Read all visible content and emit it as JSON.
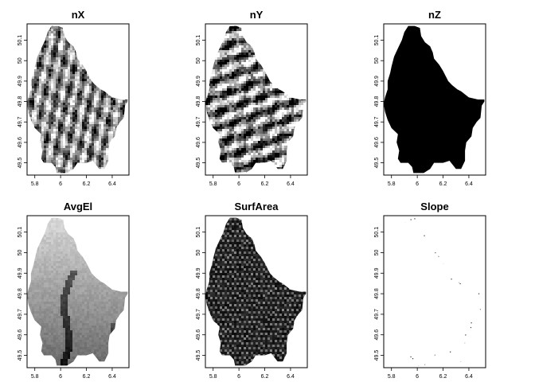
{
  "figure": {
    "background": "#ffffff"
  },
  "chart_data": [
    {
      "type": "heatmap",
      "title": "nX",
      "xlabel": "",
      "ylabel": "",
      "xlim": [
        5.74,
        6.53
      ],
      "ylim": [
        49.44,
        50.18
      ],
      "x_ticks": [
        5.8,
        6,
        6.2,
        6.4
      ],
      "x_tick_labels": [
        "5.8",
        "6",
        "6.2",
        "6.4"
      ],
      "y_ticks": [
        49.5,
        49.6,
        49.7,
        49.8,
        49.9,
        50,
        50.1
      ],
      "y_tick_labels": [
        "49.5",
        "49.6",
        "49.7",
        "49.8",
        "49.9",
        "50",
        "50.1"
      ],
      "palette": "grayscale",
      "pattern": "diagonal-relief"
    },
    {
      "type": "heatmap",
      "title": "nY",
      "xlabel": "",
      "ylabel": "",
      "xlim": [
        5.74,
        6.53
      ],
      "ylim": [
        49.44,
        50.18
      ],
      "x_ticks": [
        5.8,
        6,
        6.2,
        6.4
      ],
      "x_tick_labels": [
        "5.8",
        "6",
        "6.2",
        "6.4"
      ],
      "y_ticks": [
        49.5,
        49.6,
        49.7,
        49.8,
        49.9,
        50,
        50.1
      ],
      "y_tick_labels": [
        "49.5",
        "49.6",
        "49.7",
        "49.8",
        "49.9",
        "50",
        "50.1"
      ],
      "palette": "grayscale",
      "pattern": "horizontal-relief"
    },
    {
      "type": "heatmap",
      "title": "nZ",
      "xlabel": "",
      "ylabel": "",
      "xlim": [
        5.74,
        6.53
      ],
      "ylim": [
        49.44,
        50.18
      ],
      "x_ticks": [
        5.8,
        6,
        6.2,
        6.4
      ],
      "x_tick_labels": [
        "5.8",
        "6",
        "6.2",
        "6.4"
      ],
      "y_ticks": [
        49.5,
        49.6,
        49.7,
        49.8,
        49.9,
        50,
        50.1
      ],
      "y_tick_labels": [
        "49.5",
        "49.6",
        "49.7",
        "49.8",
        "49.9",
        "50",
        "50.1"
      ],
      "palette": "grayscale",
      "pattern": "solid-dark"
    },
    {
      "type": "heatmap",
      "title": "AvgEl",
      "xlabel": "",
      "ylabel": "",
      "xlim": [
        5.74,
        6.53
      ],
      "ylim": [
        49.44,
        50.18
      ],
      "x_ticks": [
        5.8,
        6,
        6.2,
        6.4
      ],
      "x_tick_labels": [
        "5.8",
        "6",
        "6.2",
        "6.4"
      ],
      "y_ticks": [
        49.5,
        49.6,
        49.7,
        49.8,
        49.9,
        50,
        50.1
      ],
      "y_tick_labels": [
        "49.5",
        "49.6",
        "49.7",
        "49.8",
        "49.9",
        "50",
        "50.1"
      ],
      "palette": "grayscale",
      "pattern": "elevation"
    },
    {
      "type": "heatmap",
      "title": "SurfArea",
      "xlabel": "",
      "ylabel": "",
      "xlim": [
        5.74,
        6.53
      ],
      "ylim": [
        49.44,
        50.18
      ],
      "x_ticks": [
        5.8,
        6,
        6.2,
        6.4
      ],
      "x_tick_labels": [
        "5.8",
        "6",
        "6.2",
        "6.4"
      ],
      "y_ticks": [
        49.5,
        49.6,
        49.7,
        49.8,
        49.9,
        50,
        50.1
      ],
      "y_tick_labels": [
        "49.5",
        "49.6",
        "49.7",
        "49.8",
        "49.9",
        "50",
        "50.1"
      ],
      "palette": "grayscale",
      "pattern": "dark-with-streaks"
    },
    {
      "type": "heatmap",
      "title": "Slope",
      "xlabel": "",
      "ylabel": "",
      "xlim": [
        5.74,
        6.53
      ],
      "ylim": [
        49.44,
        50.18
      ],
      "x_ticks": [
        5.8,
        6,
        6.2,
        6.4
      ],
      "x_tick_labels": [
        "5.8",
        "6",
        "6.2",
        "6.4"
      ],
      "y_ticks": [
        49.5,
        49.6,
        49.7,
        49.8,
        49.9,
        50,
        50.1
      ],
      "y_tick_labels": [
        "49.5",
        "49.6",
        "49.7",
        "49.8",
        "49.9",
        "50",
        "50.1"
      ],
      "palette": "grayscale",
      "pattern": "sparse-dots"
    }
  ]
}
